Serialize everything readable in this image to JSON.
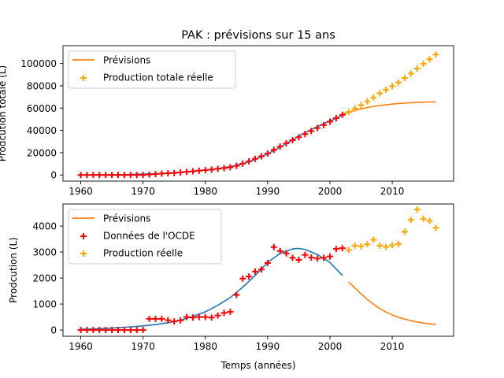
{
  "title": "PAK : prévisions sur 15 ans",
  "colors": {
    "model": "#1f77b4",
    "forecast": "#ff7f0e",
    "observed": "#ffa500",
    "oecd": "#ff0000"
  },
  "chart_data": [
    {
      "type": "line",
      "title": "PAK : prévisions sur 15 ans",
      "xlabel": "",
      "ylabel": "Prodcution totale (L)",
      "xlim": [
        1957.15,
        2019.85
      ],
      "ylim": [
        -5500,
        116000
      ],
      "xticks": [
        1960,
        1970,
        1980,
        1990,
        2000,
        2010
      ],
      "yticks": [
        0,
        20000,
        40000,
        60000,
        80000,
        100000
      ],
      "ytick_labels": [
        "0",
        "20000",
        "40000",
        "60000",
        "80000",
        "100000"
      ],
      "grid": false,
      "legend_position": "top-left",
      "legend": [
        "Prévisions",
        "Production totale réelle"
      ],
      "series": [
        {
          "name": "Prévisions",
          "kind": "line",
          "color": "#ff7f0e",
          "x": [
            2002,
            2003,
            2004,
            2005,
            2006,
            2007,
            2008,
            2009,
            2010,
            2011,
            2012,
            2013,
            2014,
            2015,
            2016,
            2017
          ],
          "y": [
            54500,
            56300,
            57900,
            59300,
            60500,
            61500,
            62300,
            63000,
            63600,
            64100,
            64500,
            64800,
            65100,
            65300,
            65500,
            65700
          ]
        },
        {
          "name": "",
          "kind": "line",
          "color": "#1f77b4",
          "x": [
            1960,
            1962,
            1964,
            1966,
            1968,
            1970,
            1972,
            1974,
            1976,
            1978,
            1980,
            1982,
            1984,
            1986,
            1988,
            1990,
            1992,
            1994,
            1996,
            1998,
            2000,
            2002
          ],
          "y": [
            0,
            100,
            200,
            300,
            500,
            800,
            1200,
            1800,
            2600,
            3500,
            4500,
            5800,
            7500,
            10000,
            14000,
            19000,
            25000,
            31500,
            38000,
            43500,
            48500,
            53500
          ]
        },
        {
          "name": "",
          "kind": "markers",
          "color": "#ff0000",
          "x": [
            1960,
            1961,
            1962,
            1963,
            1964,
            1965,
            1966,
            1967,
            1968,
            1969,
            1970,
            1971,
            1972,
            1973,
            1974,
            1975,
            1976,
            1977,
            1978,
            1979,
            1980,
            1981,
            1982,
            1983,
            1984,
            1985,
            1986,
            1987,
            1988,
            1989,
            1990,
            1991,
            1992,
            1993,
            1994,
            1995,
            1996,
            1997,
            1998,
            1999,
            2000,
            2001,
            2002
          ],
          "y": [
            0,
            0,
            0,
            0,
            0,
            0,
            0,
            0,
            0,
            0,
            0,
            400,
            800,
            1200,
            1500,
            1800,
            2300,
            2800,
            3300,
            3800,
            4300,
            4800,
            5500,
            6200,
            6900,
            8200,
            10200,
            12300,
            14500,
            16800,
            19300,
            22500,
            25500,
            28500,
            31200,
            33900,
            36700,
            39400,
            42100,
            44800,
            47900,
            51000,
            54000
          ]
        },
        {
          "name": "Production totale réelle",
          "kind": "markers",
          "color": "#ffa500",
          "x": [
            2003,
            2004,
            2005,
            2006,
            2007,
            2008,
            2009,
            2010,
            2011,
            2012,
            2013,
            2014,
            2015,
            2016,
            2017
          ],
          "y": [
            56500,
            59700,
            62700,
            66000,
            69500,
            73300,
            76500,
            79700,
            83000,
            87000,
            91000,
            95500,
            99800,
            103800,
            108000
          ]
        }
      ]
    },
    {
      "type": "line",
      "title": "",
      "xlabel": "Temps (années)",
      "ylabel": "Prodcution (L)",
      "xlim": [
        1957.15,
        2019.85
      ],
      "ylim": [
        -240,
        4850
      ],
      "xticks": [
        1960,
        1970,
        1980,
        1990,
        2000,
        2010
      ],
      "yticks": [
        0,
        1000,
        2000,
        3000,
        4000
      ],
      "ytick_labels": [
        "0",
        "1000",
        "2000",
        "3000",
        "4000"
      ],
      "grid": false,
      "legend_position": "top-left",
      "legend": [
        "Prévisions",
        "Données de l'OCDE",
        "Production réelle"
      ],
      "series": [
        {
          "name": "",
          "kind": "line",
          "color": "#1f77b4",
          "x": [
            1960,
            1962,
            1964,
            1966,
            1968,
            1970,
            1972,
            1974,
            1976,
            1978,
            1980,
            1982,
            1984,
            1986,
            1988,
            1990,
            1992,
            1994,
            1995,
            1996,
            1998,
            2000,
            2002
          ],
          "y": [
            30,
            40,
            60,
            90,
            120,
            160,
            210,
            280,
            380,
            520,
            700,
            950,
            1250,
            1650,
            2100,
            2600,
            2950,
            3120,
            3140,
            3100,
            2900,
            2600,
            2100
          ]
        },
        {
          "name": "Prévisions",
          "kind": "line",
          "color": "#ff7f0e",
          "x": [
            2003,
            2004,
            2005,
            2006,
            2007,
            2008,
            2009,
            2010,
            2011,
            2012,
            2013,
            2014,
            2015,
            2016,
            2017
          ],
          "y": [
            1850,
            1620,
            1390,
            1180,
            990,
            830,
            690,
            580,
            490,
            420,
            360,
            310,
            270,
            240,
            210
          ]
        },
        {
          "name": "Données de l'OCDE",
          "kind": "markers",
          "color": "#ff0000",
          "x": [
            1960,
            1961,
            1962,
            1963,
            1964,
            1965,
            1966,
            1967,
            1968,
            1969,
            1970,
            1971,
            1972,
            1973,
            1974,
            1975,
            1976,
            1977,
            1978,
            1979,
            1980,
            1981,
            1982,
            1983,
            1984,
            1985,
            1986,
            1987,
            1988,
            1989,
            1990,
            1991,
            1992,
            1993,
            1994,
            1995,
            1996,
            1997,
            1998,
            1999,
            2000,
            2001,
            2002
          ],
          "y": [
            0,
            0,
            0,
            0,
            0,
            0,
            0,
            0,
            0,
            0,
            0,
            430,
            430,
            430,
            380,
            330,
            370,
            500,
            480,
            500,
            500,
            480,
            560,
            660,
            700,
            1350,
            1980,
            2060,
            2250,
            2330,
            2580,
            3190,
            3040,
            2950,
            2780,
            2700,
            2890,
            2790,
            2750,
            2780,
            2830,
            3120,
            3150
          ]
        },
        {
          "name": "Production réelle",
          "kind": "markers",
          "color": "#ffa500",
          "x": [
            2003,
            2004,
            2005,
            2006,
            2007,
            2008,
            2009,
            2010,
            2011,
            2012,
            2013,
            2014,
            2015,
            2016,
            2017
          ],
          "y": [
            3080,
            3250,
            3220,
            3300,
            3470,
            3250,
            3200,
            3260,
            3310,
            3780,
            4240,
            4640,
            4280,
            4200,
            3930
          ]
        }
      ]
    }
  ]
}
